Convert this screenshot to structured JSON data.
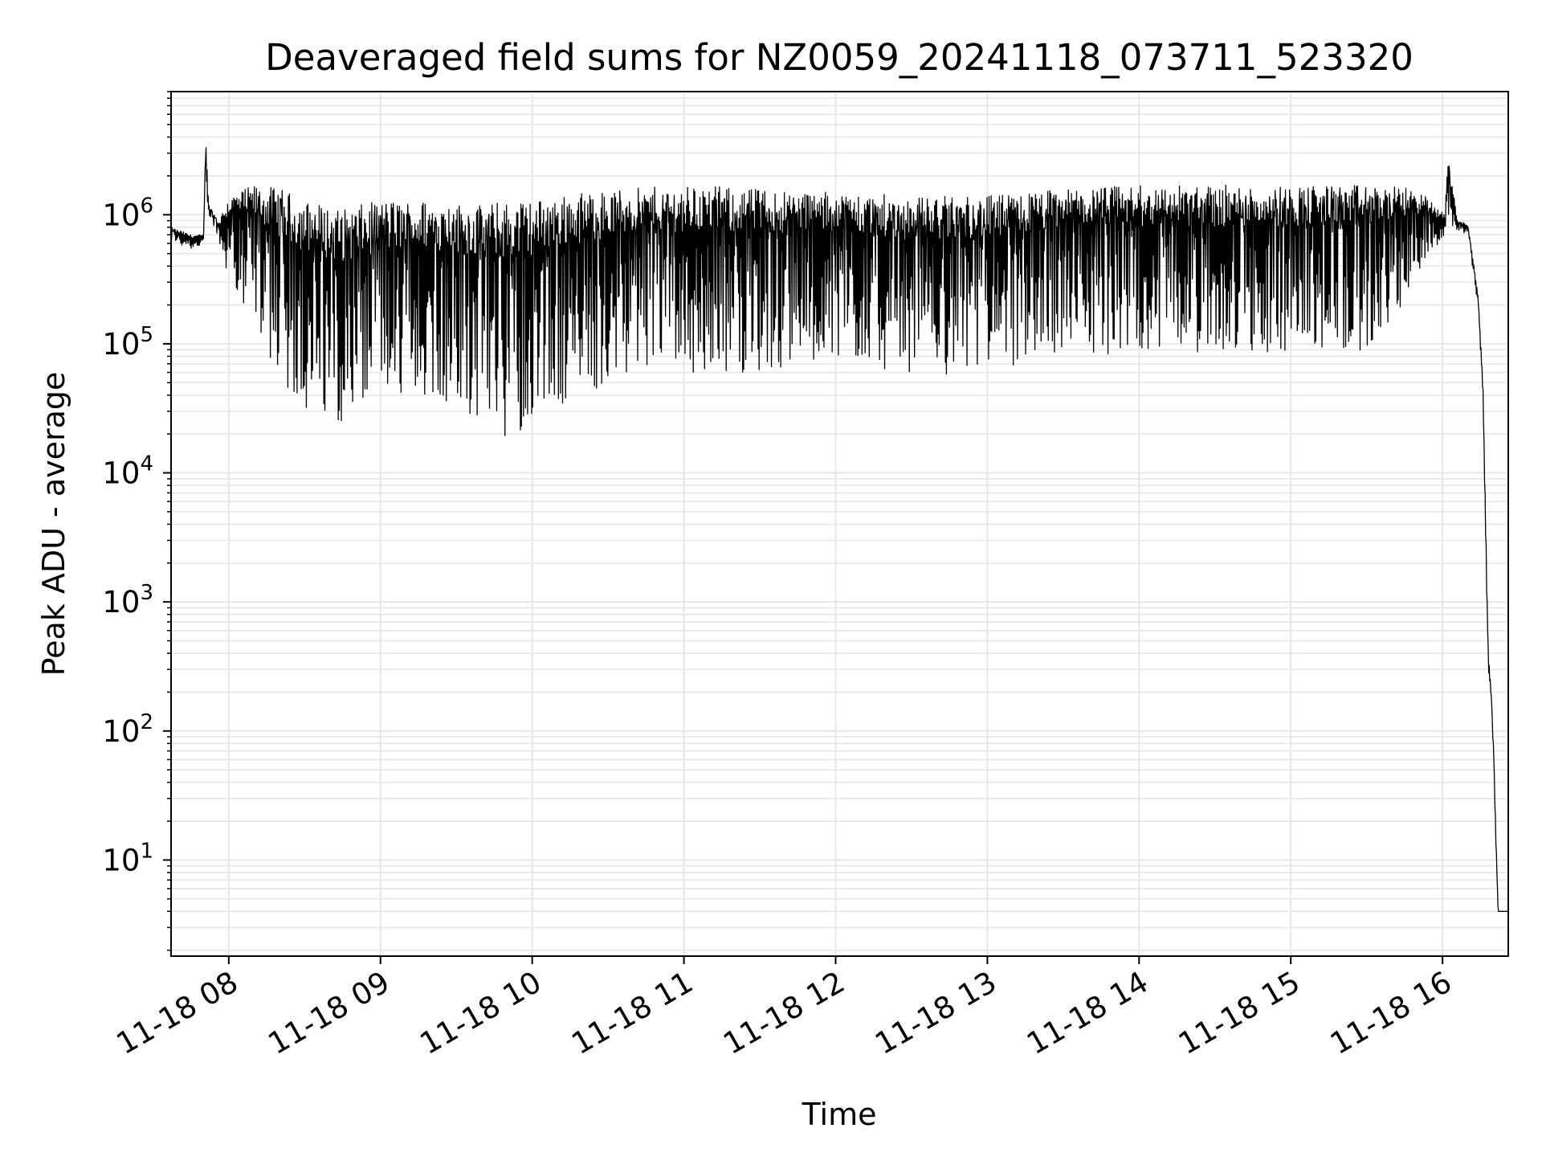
{
  "chart_data": {
    "type": "line",
    "title": "Deaveraged field sums for NZ0059_20241118_073711_523320",
    "xlabel": "Time",
    "ylabel": "Peak ADU - average",
    "yscale": "log",
    "ylim": [
      1.8,
      9000000
    ],
    "xlim": [
      "2024-11-18 07:37:11",
      "2024-11-18 16:26:00"
    ],
    "grid": true,
    "line_color": "#000000",
    "grid_color": "#e6e6e6",
    "x_ticks": [
      {
        "value": "2024-11-18 08:00:00",
        "label": "11-18 08"
      },
      {
        "value": "2024-11-18 09:00:00",
        "label": "11-18 09"
      },
      {
        "value": "2024-11-18 10:00:00",
        "label": "11-18 10"
      },
      {
        "value": "2024-11-18 11:00:00",
        "label": "11-18 11"
      },
      {
        "value": "2024-11-18 12:00:00",
        "label": "11-18 12"
      },
      {
        "value": "2024-11-18 13:00:00",
        "label": "11-18 13"
      },
      {
        "value": "2024-11-18 14:00:00",
        "label": "11-18 14"
      },
      {
        "value": "2024-11-18 15:00:00",
        "label": "11-18 15"
      },
      {
        "value": "2024-11-18 16:00:00",
        "label": "11-18 16"
      }
    ],
    "y_ticks": [
      {
        "value": 10,
        "base": "10",
        "exp": "1"
      },
      {
        "value": 100,
        "base": "10",
        "exp": "2"
      },
      {
        "value": 1000,
        "base": "10",
        "exp": "3"
      },
      {
        "value": 10000,
        "base": "10",
        "exp": "4"
      },
      {
        "value": 100000,
        "base": "10",
        "exp": "5"
      },
      {
        "value": 1000000,
        "base": "10",
        "exp": "6"
      }
    ],
    "series": [
      {
        "x": [
          "2024-11-18 07:37:11",
          "2024-11-18 07:45:00",
          "2024-11-18 07:50:00",
          "2024-11-18 07:51:00",
          "2024-11-18 07:52:00",
          "2024-11-18 07:56:00",
          "2024-11-18 08:00:00",
          "2024-11-18 08:10:00",
          "2024-11-18 08:20:00",
          "2024-11-18 08:30:00",
          "2024-11-18 08:45:00",
          "2024-11-18 09:00:00",
          "2024-11-18 09:20:00",
          "2024-11-18 09:40:00",
          "2024-11-18 09:50:00",
          "2024-11-18 10:00:00",
          "2024-11-18 10:20:00",
          "2024-11-18 10:40:00",
          "2024-11-18 11:00:00",
          "2024-11-18 11:30:00",
          "2024-11-18 12:00:00",
          "2024-11-18 12:30:00",
          "2024-11-18 13:00:00",
          "2024-11-18 13:30:00",
          "2024-11-18 14:00:00",
          "2024-11-18 14:30:00",
          "2024-11-18 15:00:00",
          "2024-11-18 15:30:00",
          "2024-11-18 15:50:00",
          "2024-11-18 16:01:00",
          "2024-11-18 16:02:00",
          "2024-11-18 16:06:00",
          "2024-11-18 16:10:00",
          "2024-11-18 16:14:00",
          "2024-11-18 16:16:00",
          "2024-11-18 16:18:00",
          "2024-11-18 16:19:00",
          "2024-11-18 16:20:00",
          "2024-11-18 16:21:00",
          "2024-11-18 16:22:00",
          "2024-11-18 16:26:00"
        ],
        "y_high": [
          800000,
          700000,
          700000,
          5000000,
          1200000,
          900000,
          1400000,
          1700000,
          1600000,
          1300000,
          1100000,
          1300000,
          1300000,
          1200000,
          1300000,
          1300000,
          1500000,
          1600000,
          1700000,
          1600000,
          1500000,
          1400000,
          1400000,
          1600000,
          1700000,
          1700000,
          1700000,
          1700000,
          1600000,
          1000000,
          3000000,
          900000,
          850000,
          250000,
          50000,
          500,
          250,
          100,
          20,
          4,
          4
        ],
        "y_low": [
          600000,
          550000,
          550000,
          900000,
          1000000,
          600000,
          300000,
          150000,
          50000,
          30000,
          25000,
          30000,
          40000,
          25000,
          18000,
          25000,
          40000,
          55000,
          60000,
          60000,
          80000,
          55000,
          60000,
          80000,
          85000,
          85000,
          80000,
          90000,
          250000,
          700000,
          800000,
          750000,
          700000,
          200000,
          40000,
          300,
          150,
          80,
          15,
          4,
          4
        ]
      }
    ]
  }
}
